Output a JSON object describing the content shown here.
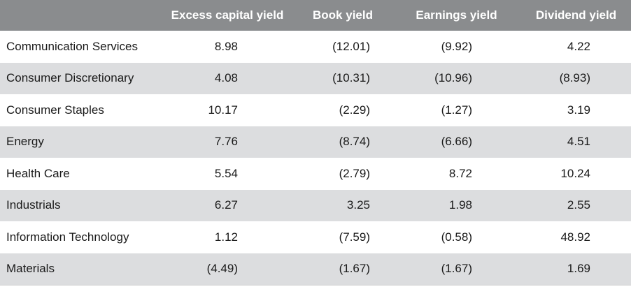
{
  "chart_data": {
    "type": "table",
    "columns": [
      "",
      "Excess capital yield",
      "Book yield",
      "Earnings yield",
      "Dividend yield"
    ],
    "rows": [
      {
        "sector": "Communication Services",
        "values": [
          "8.98",
          "(12.01)",
          "(9.92)",
          "4.22"
        ]
      },
      {
        "sector": "Consumer Discretionary",
        "values": [
          "4.08",
          "(10.31)",
          "(10.96)",
          "(8.93)"
        ]
      },
      {
        "sector": "Consumer Staples",
        "values": [
          "10.17",
          "(2.29)",
          "(1.27)",
          "3.19"
        ]
      },
      {
        "sector": "Energy",
        "values": [
          "7.76",
          "(8.74)",
          "(6.66)",
          "4.51"
        ]
      },
      {
        "sector": "Health Care",
        "values": [
          "5.54",
          "(2.79)",
          "8.72",
          "10.24"
        ]
      },
      {
        "sector": "Industrials",
        "values": [
          "6.27",
          "3.25",
          "1.98",
          "2.55"
        ]
      },
      {
        "sector": "Information Technology",
        "values": [
          "1.12",
          "(7.59)",
          "(0.58)",
          "48.92"
        ]
      },
      {
        "sector": "Materials",
        "values": [
          "(4.49)",
          "(1.67)",
          "(1.67)",
          "1.69"
        ]
      }
    ],
    "header_color": "#8a8c8e",
    "stripe_color": "#dcdddf"
  }
}
